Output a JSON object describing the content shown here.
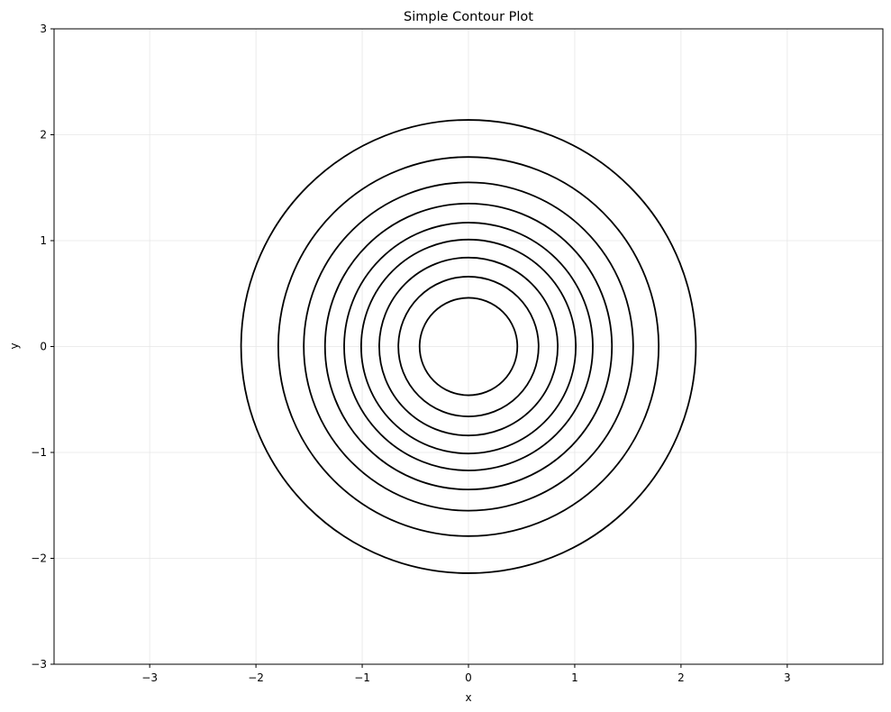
{
  "chart_data": {
    "type": "contour",
    "title": "Simple Contour Plot",
    "xlabel": "x",
    "ylabel": "y",
    "xlim": [
      -3.9,
      3.9
    ],
    "ylim": [
      -3,
      3
    ],
    "x_ticks": [
      -3,
      -2,
      -1,
      0,
      1,
      2,
      3
    ],
    "y_ticks": [
      -3,
      -2,
      -1,
      0,
      1,
      2,
      3
    ],
    "x_tick_labels": [
      "−3",
      "−2",
      "−1",
      "0",
      "1",
      "2",
      "3"
    ],
    "y_tick_labels": [
      "−3",
      "−2",
      "−1",
      "0",
      "1",
      "2",
      "3"
    ],
    "grid": true,
    "line_color": "#000000",
    "grid_color": "#e6e6e6",
    "contours": [
      {
        "center": [
          0,
          0
        ],
        "radius": 0.46
      },
      {
        "center": [
          0,
          0
        ],
        "radius": 0.66
      },
      {
        "center": [
          0,
          0
        ],
        "radius": 0.84
      },
      {
        "center": [
          0,
          0
        ],
        "radius": 1.01
      },
      {
        "center": [
          0,
          0
        ],
        "radius": 1.17
      },
      {
        "center": [
          0,
          0
        ],
        "radius": 1.35
      },
      {
        "center": [
          0,
          0
        ],
        "radius": 1.55
      },
      {
        "center": [
          0,
          0
        ],
        "radius": 1.79
      },
      {
        "center": [
          0,
          0
        ],
        "radius": 2.14
      }
    ]
  }
}
